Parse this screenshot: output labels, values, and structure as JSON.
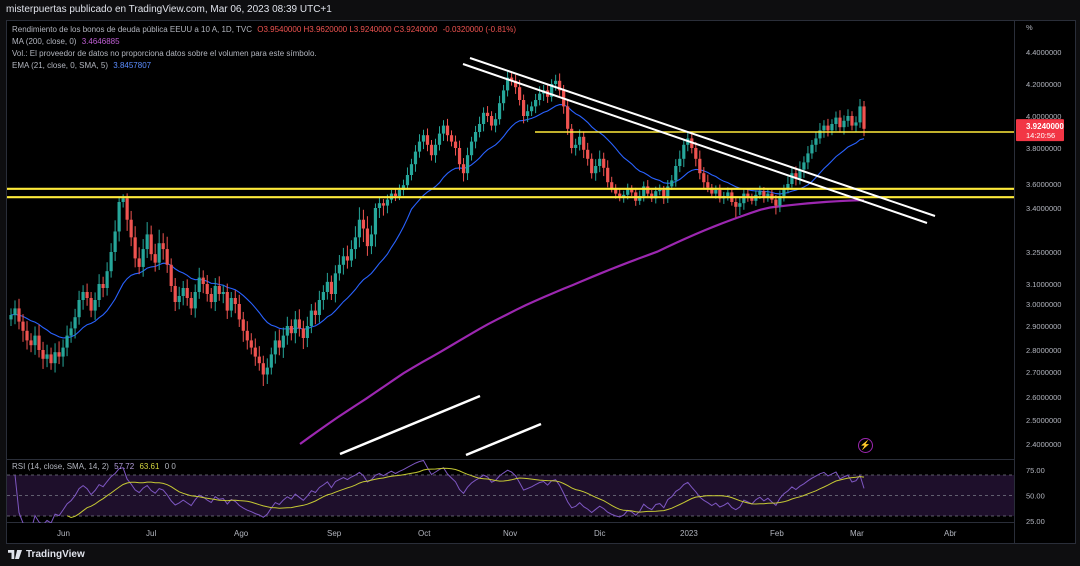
{
  "header": {
    "published": "misterpuertas publicado en TradingView.com, Mar 06, 2023 08:39 UTC+1"
  },
  "legend": {
    "symbol": "Rendimiento de los bonos de deuda pública EEUU a 10 A, 1D, TVC",
    "ohlc": "O3.9540000  H3.9620000  L3.9240000  C3.9240000",
    "change": "-0.0320000 (-0.81%)",
    "ma_label": "MA (200, close, 0)",
    "ma_value": "3.4646885",
    "vol_label": "Vol.: El proveedor de datos no proporciona datos sobre el volumen para este símbolo.",
    "ema_label": "EMA (21, close, 0, SMA, 5)",
    "ema_value": "3.8457807",
    "rsi_label": "RSI (14, close, SMA, 14, 2)",
    "rsi_value": "57.72",
    "rsi_ma_value": "63.61",
    "rsi_extra": "0  0"
  },
  "price_badge": {
    "value": "3.9240000",
    "countdown": "14:20:56"
  },
  "footer": {
    "logo": "TradingView"
  },
  "colors": {
    "up": "#26a69a",
    "down": "#ef5350",
    "ma": "#9c27b0",
    "ema": "#2962ff",
    "hline": "#ffeb3b",
    "trend": "#ffffff",
    "rsi": "#7e57c2",
    "rsi_ma": "#c6c934"
  },
  "chart_data": [
    {
      "type": "candlestick",
      "x_ticks": [
        "Jun",
        "Jul",
        "Ago",
        "Sep",
        "Oct",
        "Nov",
        "Dic",
        "2023",
        "Feb",
        "Mar",
        "Abr"
      ],
      "unit_label": "%",
      "y_ticks": [
        "4.4000000",
        "4.2000000",
        "4.0000000",
        "3.8000000",
        "3.6000000",
        "3.4000000",
        "3.2500000",
        "3.1000000",
        "3.0000000",
        "2.9000000",
        "2.8000000",
        "2.7000000",
        "2.6000000",
        "2.5000000",
        "2.4000000"
      ],
      "closes": [
        2.95,
        2.98,
        2.92,
        2.88,
        2.84,
        2.82,
        2.86,
        2.8,
        2.76,
        2.78,
        2.74,
        2.79,
        2.77,
        2.81,
        2.86,
        2.89,
        2.94,
        3.02,
        3.06,
        3.03,
        2.97,
        3.02,
        3.1,
        3.08,
        3.16,
        3.25,
        3.32,
        3.45,
        3.48,
        3.36,
        3.3,
        3.22,
        3.18,
        3.26,
        3.31,
        3.24,
        3.2,
        3.28,
        3.26,
        3.19,
        3.09,
        3.01,
        3.04,
        3.08,
        3.03,
        2.98,
        3.06,
        3.13,
        3.1,
        3.05,
        3.01,
        3.09,
        3.05,
        3.06,
        2.97,
        3.03,
        3.0,
        2.93,
        2.88,
        2.84,
        2.81,
        2.77,
        2.74,
        2.69,
        2.72,
        2.78,
        2.84,
        2.81,
        2.86,
        2.9,
        2.87,
        2.93,
        2.89,
        2.85,
        2.9,
        2.97,
        2.95,
        3.02,
        3.06,
        3.11,
        3.05,
        3.15,
        3.19,
        3.23,
        3.21,
        3.26,
        3.3,
        3.36,
        3.33,
        3.27,
        3.31,
        3.4,
        3.44,
        3.42,
        3.47,
        3.52,
        3.5,
        3.55,
        3.59,
        3.65,
        3.71,
        3.78,
        3.84,
        3.88,
        3.82,
        3.76,
        3.82,
        3.89,
        3.94,
        3.88,
        3.84,
        3.8,
        3.71,
        3.66,
        3.76,
        3.84,
        3.9,
        3.95,
        4.02,
        4.0,
        3.94,
        3.98,
        4.08,
        4.16,
        4.24,
        4.22,
        4.18,
        4.1,
        4.0,
        4.03,
        4.06,
        4.1,
        4.14,
        4.16,
        4.12,
        4.2,
        4.22,
        4.16,
        4.06,
        3.92,
        3.8,
        3.82,
        3.87,
        3.79,
        3.74,
        3.66,
        3.7,
        3.74,
        3.69,
        3.61,
        3.56,
        3.52,
        3.49,
        3.51,
        3.56,
        3.53,
        3.46,
        3.5,
        3.58,
        3.52,
        3.48,
        3.54,
        3.55,
        3.48,
        3.58,
        3.62,
        3.7,
        3.74,
        3.82,
        3.86,
        3.8,
        3.74,
        3.66,
        3.61,
        3.57,
        3.52,
        3.55,
        3.48,
        3.5,
        3.53,
        3.45,
        3.41,
        3.44,
        3.52,
        3.49,
        3.46,
        3.51,
        3.54,
        3.49,
        3.52,
        3.47,
        3.42,
        3.5,
        3.56,
        3.6,
        3.66,
        3.63,
        3.68,
        3.72,
        3.77,
        3.82,
        3.86,
        3.91,
        3.94,
        3.91,
        3.95,
        3.99,
        3.93,
        3.97,
        4.0,
        3.94,
        3.96,
        4.06,
        3.92
      ],
      "closes_range": "approximate daily closes, Jun 2022 to Mar 06 2023",
      "ema_21": "smoothed from closes",
      "ma_200_start": 2.4,
      "ma_200_end": 3.4646885,
      "horizontal_levels": [
        3.9,
        3.56,
        3.49
      ],
      "last_price": 3.924
    },
    {
      "type": "line",
      "name": "RSI",
      "y_ticks": [
        "75.00",
        "50.00",
        "25.00"
      ],
      "bands": [
        70,
        50,
        30
      ],
      "rsi_last": 57.72,
      "rsi_ma_last": 63.61
    }
  ]
}
